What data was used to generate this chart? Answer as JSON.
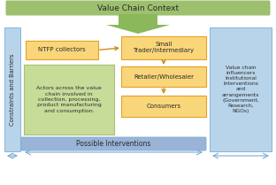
{
  "title": "Value Chain Context",
  "bottom_bar_text": "Possible Interventions",
  "left_bar_text": "Constraints and Barriers",
  "right_box_text": "Value chain\ninfluencers\nInstitutional\nInterventions\nand\narrangements\n(Government,\nResearch,\nNGOs)",
  "box_ntfp": "NTFP collectors",
  "box_small_trader": "Small\nTrader/Intermediary",
  "box_retailer": "Retailer/Wholesaler",
  "box_consumers": "Consumers",
  "box_actors": "Actors across the value\nchain involved in\ncollection, processing,\nproduct manufacturing\nand consumption.",
  "color_green_banner": "#9dc06e",
  "color_green_arrow": "#8ab85a",
  "color_yellow_box": "#e8a020",
  "color_yellow_light": "#f9d67a",
  "color_blue_bar": "#7aadd4",
  "color_blue_light": "#b8d4ea",
  "color_green_box": "#a8c070",
  "color_green_light": "#c8dc9a",
  "color_white": "#ffffff",
  "color_dark_text": "#2a2a2a",
  "color_arrow": "#c89020",
  "color_bottom_bar": "#9ab4d8"
}
